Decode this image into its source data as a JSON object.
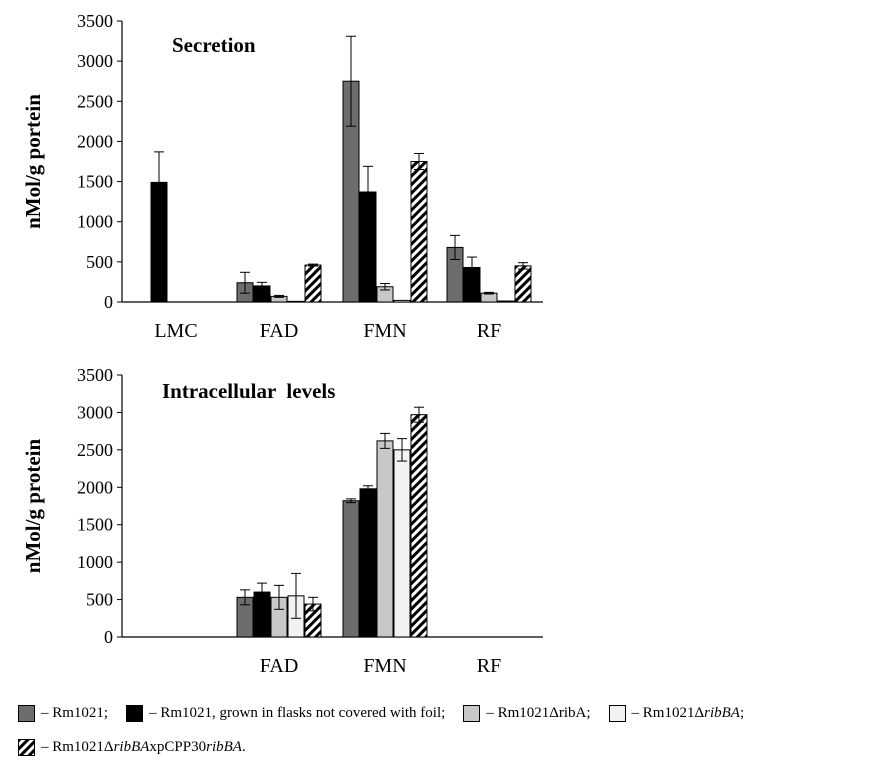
{
  "colors": {
    "Rm1021": "#6d6d6d",
    "dark": "#000000",
    "ribA": "#c8c8c8",
    "ribBA": "#f2f2f2",
    "hatched": "hatch"
  },
  "legend": {
    "items": [
      {
        "key": "Rm1021",
        "label": "– Rm1021;"
      },
      {
        "key": "dark",
        "label": "– Rm1021, grown in flasks not covered with foil;"
      },
      {
        "key": "ribA",
        "label": "– Rm1021ΔribA;"
      },
      {
        "key": "ribBA",
        "prefix": "– Rm1021Δ",
        "italic": "ribBA",
        "suffix": ";"
      },
      {
        "key": "hatched",
        "prefix": "– Rm1021Δ",
        "italic": "ribBA",
        "mid": "xpCPP30",
        "italic2": "ribBA",
        "suffix": "."
      }
    ]
  },
  "chart_data": [
    {
      "type": "bar",
      "title": "Secretion",
      "ylabel": "nMol/g portein",
      "ylim": [
        0,
        3500
      ],
      "yticks": [
        0,
        500,
        1000,
        1500,
        2000,
        2500,
        3000,
        3500
      ],
      "categories": [
        "LMC",
        "FAD",
        "FMN",
        "RF"
      ],
      "series": [
        {
          "key": "Rm1021",
          "values": [
            0,
            240,
            2750,
            680
          ],
          "errors": [
            0,
            130,
            560,
            150
          ]
        },
        {
          "key": "dark",
          "values": [
            1490,
            200,
            1370,
            430
          ],
          "errors": [
            380,
            45,
            320,
            130
          ]
        },
        {
          "key": "ribA",
          "values": [
            0,
            70,
            190,
            110
          ],
          "errors": [
            0,
            12,
            40,
            10
          ]
        },
        {
          "key": "ribBA",
          "values": [
            0,
            8,
            20,
            12
          ],
          "errors": [
            0,
            0,
            0,
            0
          ]
        },
        {
          "key": "hatched",
          "values": [
            0,
            460,
            1750,
            450
          ],
          "errors": [
            0,
            12,
            100,
            40
          ]
        }
      ]
    },
    {
      "type": "bar",
      "title": "Intracellular  levels",
      "ylabel": "nMol/g protein",
      "ylim": [
        0,
        3500
      ],
      "yticks": [
        0,
        500,
        1000,
        1500,
        2000,
        2500,
        3000,
        3500
      ],
      "categories": [
        "",
        "FAD",
        "FMN",
        "RF"
      ],
      "series": [
        {
          "key": "Rm1021",
          "values": [
            0,
            530,
            1820,
            0
          ],
          "errors": [
            0,
            100,
            25,
            0
          ]
        },
        {
          "key": "dark",
          "values": [
            0,
            600,
            1980,
            0
          ],
          "errors": [
            0,
            120,
            40,
            0
          ]
        },
        {
          "key": "ribA",
          "values": [
            0,
            530,
            2620,
            0
          ],
          "errors": [
            0,
            160,
            100,
            0
          ]
        },
        {
          "key": "ribBA",
          "values": [
            0,
            550,
            2500,
            0
          ],
          "errors": [
            0,
            300,
            150,
            0
          ]
        },
        {
          "key": "hatched",
          "values": [
            0,
            440,
            2970,
            0
          ],
          "errors": [
            0,
            90,
            100,
            0
          ]
        }
      ]
    }
  ]
}
